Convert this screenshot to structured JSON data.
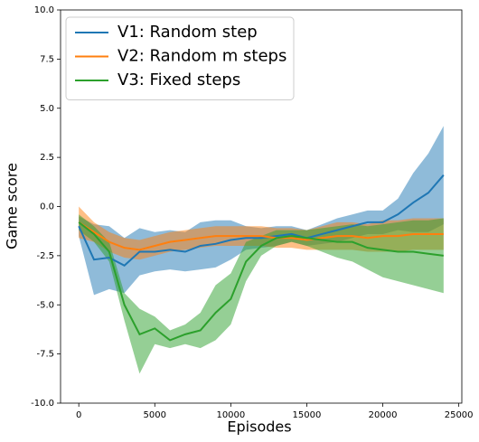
{
  "chart_data": {
    "type": "line",
    "xlabel": "Episodes",
    "ylabel": "Game score",
    "x": [
      0,
      1000,
      2000,
      3000,
      4000,
      5000,
      6000,
      7000,
      8000,
      9000,
      10000,
      11000,
      12000,
      13000,
      14000,
      15000,
      16000,
      17000,
      18000,
      19000,
      20000,
      21000,
      22000,
      23000,
      24000
    ],
    "series": [
      {
        "name": "V1: Random step",
        "color": "#1f77b4",
        "values": [
          -1,
          -2.7,
          -2.6,
          -3.0,
          -2.3,
          -2.3,
          -2.2,
          -2.3,
          -2.0,
          -1.9,
          -1.7,
          -1.6,
          -1.6,
          -1.5,
          -1.4,
          -1.6,
          -1.4,
          -1.2,
          -1.0,
          -0.8,
          -0.8,
          -0.4,
          0.2,
          0.7,
          1.6
        ],
        "lower": [
          -1.5,
          -4.5,
          -4.2,
          -4.4,
          -3.5,
          -3.3,
          -3.2,
          -3.3,
          -3.2,
          -3.1,
          -2.7,
          -2.2,
          -2.1,
          -2.0,
          -1.8,
          -2.0,
          -1.9,
          -1.8,
          -1.6,
          -1.4,
          -1.4,
          -1.2,
          -1.3,
          -1.3,
          -0.9
        ],
        "upper": [
          -0.5,
          -0.9,
          -1.0,
          -1.6,
          -1.1,
          -1.3,
          -1.2,
          -1.3,
          -0.8,
          -0.7,
          -0.7,
          -1.0,
          -1.1,
          -1.0,
          -1.0,
          -1.2,
          -0.9,
          -0.6,
          -0.4,
          -0.2,
          -0.2,
          0.4,
          1.7,
          2.7,
          4.1
        ]
      },
      {
        "name": "V2: Random m steps",
        "color": "#ff7f0e",
        "values": [
          -0.8,
          -1.3,
          -1.8,
          -2.1,
          -2.2,
          -2.0,
          -1.8,
          -1.7,
          -1.6,
          -1.5,
          -1.5,
          -1.5,
          -1.5,
          -1.6,
          -1.6,
          -1.7,
          -1.6,
          -1.5,
          -1.5,
          -1.6,
          -1.5,
          -1.5,
          -1.4,
          -1.4,
          -1.4
        ],
        "lower": [
          -1.6,
          -1.8,
          -2.3,
          -2.6,
          -2.7,
          -2.5,
          -2.3,
          -2.2,
          -2.1,
          -2.0,
          -2.0,
          -2.0,
          -2.0,
          -2.1,
          -2.1,
          -2.2,
          -2.2,
          -2.2,
          -2.2,
          -2.3,
          -2.3,
          -2.3,
          -2.2,
          -2.2,
          -2.2
        ],
        "upper": [
          0.0,
          -0.8,
          -1.3,
          -1.6,
          -1.7,
          -1.5,
          -1.3,
          -1.2,
          -1.1,
          -1.0,
          -1.0,
          -1.0,
          -1.0,
          -1.1,
          -1.1,
          -1.2,
          -1.0,
          -0.8,
          -0.8,
          -0.9,
          -0.7,
          -0.7,
          -0.6,
          -0.6,
          -0.6
        ]
      },
      {
        "name": "V3: Fixed steps",
        "color": "#2ca02c",
        "values": [
          -0.8,
          -1.4,
          -2.3,
          -5.0,
          -6.5,
          -6.2,
          -6.8,
          -6.5,
          -6.3,
          -5.4,
          -4.7,
          -2.8,
          -2.0,
          -1.6,
          -1.5,
          -1.6,
          -1.7,
          -1.8,
          -1.8,
          -2.1,
          -2.2,
          -2.3,
          -2.3,
          -2.4,
          -2.5
        ],
        "lower": [
          -1.2,
          -1.8,
          -2.8,
          -5.8,
          -8.5,
          -7.0,
          -7.2,
          -7.0,
          -7.2,
          -6.8,
          -6.0,
          -3.8,
          -2.5,
          -2.0,
          -1.8,
          -2.0,
          -2.3,
          -2.6,
          -2.8,
          -3.2,
          -3.6,
          -3.8,
          -4.0,
          -4.2,
          -4.4
        ],
        "upper": [
          -0.4,
          -1.0,
          -1.8,
          -4.4,
          -5.2,
          -5.6,
          -6.3,
          -6.0,
          -5.4,
          -4.0,
          -3.4,
          -1.8,
          -1.5,
          -1.2,
          -1.2,
          -1.2,
          -1.1,
          -1.0,
          -0.9,
          -1.0,
          -0.9,
          -0.8,
          -0.7,
          -0.7,
          -0.6
        ]
      }
    ],
    "xlim": [
      -1200,
      25200
    ],
    "ylim": [
      -10,
      10
    ],
    "xticks": [
      0,
      5000,
      10000,
      15000,
      20000,
      25000
    ],
    "yticks": [
      {
        "value": -10,
        "label": "-10.0"
      },
      {
        "value": -7.5,
        "label": "-7.5"
      },
      {
        "value": -5,
        "label": "-5.0"
      },
      {
        "value": -2.5,
        "label": "-2.5"
      },
      {
        "value": 0,
        "label": "0.0"
      },
      {
        "value": 2.5,
        "label": "2.5"
      },
      {
        "value": 5,
        "label": "5.0"
      },
      {
        "value": 7.5,
        "label": "7.5"
      },
      {
        "value": 10,
        "label": "10.0"
      }
    ],
    "legend": "upper left",
    "grid": false
  }
}
